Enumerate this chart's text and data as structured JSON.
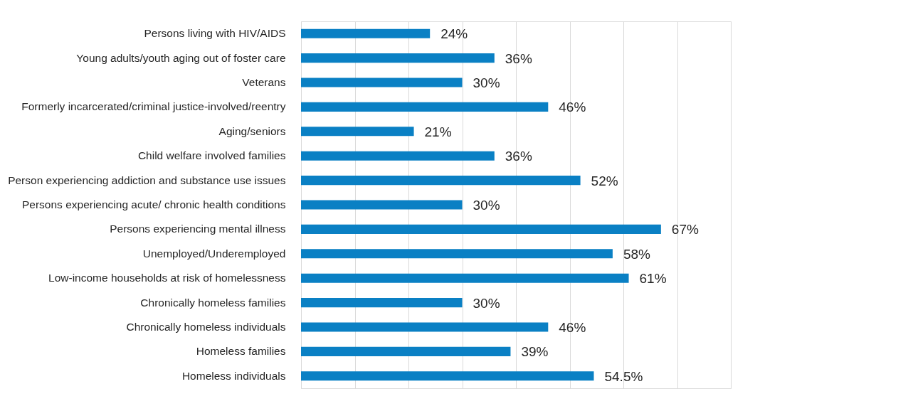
{
  "chart_data": {
    "type": "bar",
    "orientation": "horizontal",
    "categories": [
      "Persons living with HIV/AIDS",
      "Young adults/youth aging out of foster care",
      "Veterans",
      "Formerly incarcerated/criminal justice-involved/reentry",
      "Aging/seniors",
      "Child welfare involved families",
      "Person experiencing addiction and substance use issues",
      "Persons experiencing acute/ chronic health conditions",
      "Persons experiencing mental illness",
      "Unemployed/Underemployed",
      "Low-income households at risk of homelessness",
      "Chronically homeless families",
      "Chronically homeless individuals",
      "Homeless families",
      "Homeless individuals"
    ],
    "values": [
      24,
      36,
      30,
      46,
      21,
      36,
      52,
      30,
      67,
      58,
      61,
      30,
      46,
      39,
      54.5
    ],
    "value_labels": [
      "24%",
      "36%",
      "30%",
      "46%",
      "21%",
      "36%",
      "52%",
      "30%",
      "67%",
      "58%",
      "61%",
      "30%",
      "46%",
      "39%",
      "54.5%"
    ],
    "color": "#0a80c4",
    "xlim": [
      0,
      80
    ],
    "xticks": [
      {
        "value": 0,
        "label": null
      },
      {
        "value": 10,
        "label": null
      },
      {
        "value": 20,
        "label": null
      },
      {
        "value": 30,
        "label": null
      },
      {
        "value": 40,
        "label": null
      },
      {
        "value": 50,
        "label": null
      },
      {
        "value": 60,
        "label": null
      },
      {
        "value": 70,
        "label": null
      },
      {
        "value": 80,
        "label": null
      }
    ],
    "grid": "x",
    "tick_labels": "y"
  }
}
